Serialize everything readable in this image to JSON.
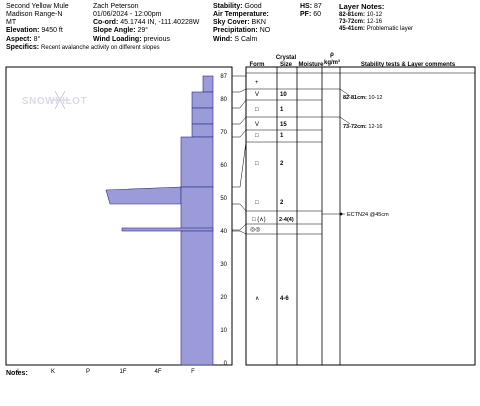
{
  "header": {
    "location_name": "Second Yellow Mule",
    "range": "Madison Range-N",
    "state": "MT",
    "elevation_label": "Elevation:",
    "elevation_value": "9450 ft",
    "aspect_label": "Aspect:",
    "aspect_value": "8°",
    "specifics_label": "Specifics:",
    "specifics_value": "Recent avalanche activity on different slopes",
    "observer": "Zach Peterson",
    "datetime": "01/06/2024 - 12:00pm",
    "coord_label": "Co-ord:",
    "coord_value": "45.1744 IN, -111.40228W",
    "slope_label": "Slope Angle:",
    "slope_value": "29°",
    "wind_label": "Wind Loading:",
    "wind_value": "previous",
    "stability_label": "Stability:",
    "stability_value": "Good",
    "air_temp_label": "Air Temperature:",
    "sky_label": "Sky Cover:",
    "sky_value": "BKN",
    "precip_label": "Precipitation:",
    "precip_value": "NO",
    "wind_label2": "Wind:",
    "wind_value2": "S Calm",
    "hs_label": "HS:",
    "hs_value": "87",
    "pf_label": "PF:",
    "pf_value": "60",
    "layer_notes_title": "Layer Notes:",
    "layer_notes": [
      {
        "range": "82-81cm:",
        "text": "10-12"
      },
      {
        "range": "73-72cm:",
        "text": "12-16"
      },
      {
        "range": "45-41cm:",
        "text": "Problematic layer"
      }
    ]
  },
  "watermark": "SNOWPILOT",
  "profile": {
    "x_ticks": [
      "I",
      "K",
      "P",
      "1F",
      "4F",
      "F"
    ],
    "y_ticks": [
      "87",
      "80",
      "70",
      "60",
      "50",
      "40",
      "30",
      "20",
      "10",
      "0"
    ]
  },
  "table": {
    "headers": {
      "form": "Form",
      "crystal": "Crystal",
      "size": "Size",
      "moisture": "Moisture",
      "rho": "ρ",
      "density": "kg/m³",
      "comments": "Stability tests & Layer comments"
    },
    "rows": [
      {
        "form": "+",
        "size": ""
      },
      {
        "form": "V",
        "size": "10"
      },
      {
        "form": "□",
        "size": "1"
      },
      {
        "form": "V",
        "size": "15"
      },
      {
        "form": "□",
        "size": "1"
      },
      {
        "form": "□",
        "size": "2"
      },
      {
        "form": "□",
        "size": "2"
      },
      {
        "form": "□ (∧)",
        "size": "2-4(4)"
      },
      {
        "form": "◎◎",
        "size": ""
      },
      {
        "form": "∧",
        "size": "4-6"
      }
    ],
    "comments": [
      {
        "range": "82-81cm:",
        "text": "10-12"
      },
      {
        "range": "73-72cm:",
        "text": "12-16"
      },
      {
        "range": "",
        "text": "ECTN24 @45cm"
      }
    ]
  },
  "notes_label": "Notes:",
  "colors": {
    "layer_fill": "#9b9bd9",
    "layer_stroke": "#2a2a8a"
  }
}
